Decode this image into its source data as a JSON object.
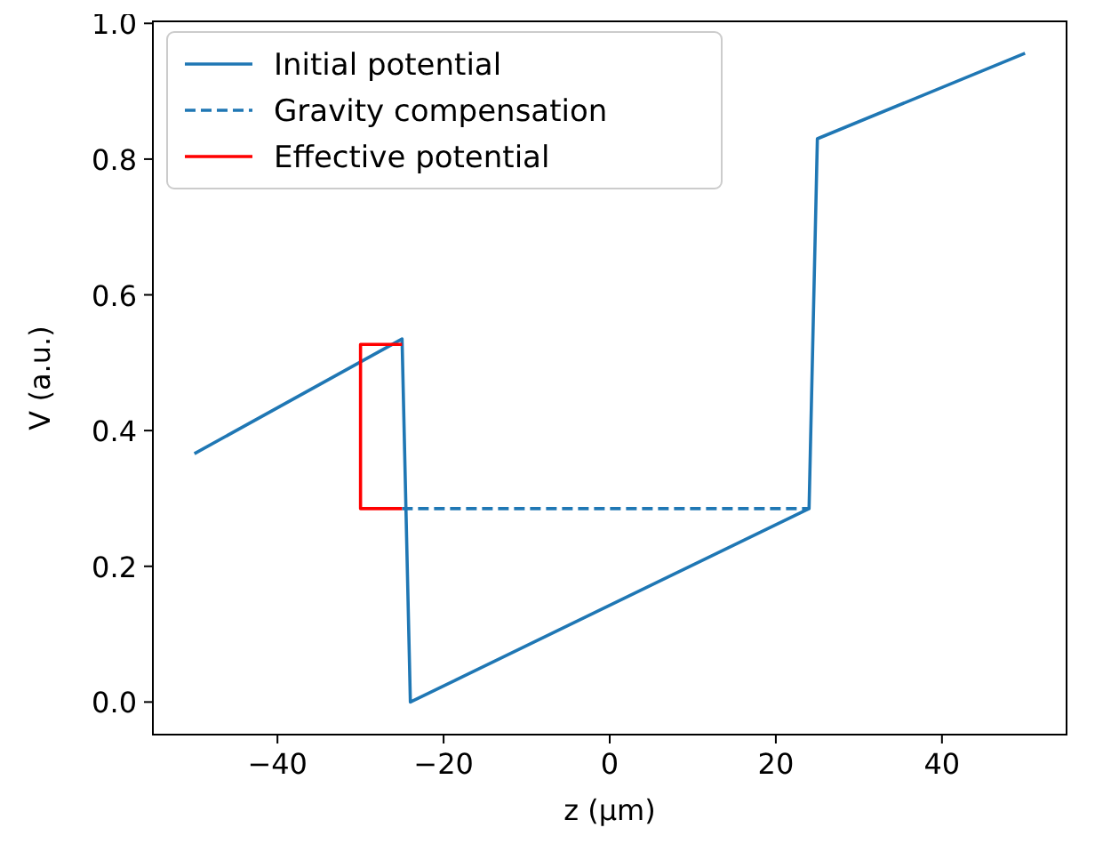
{
  "chart_data": {
    "type": "line",
    "xlabel": "z (μm)",
    "ylabel": "V (a.u.)",
    "xlim": [
      -55,
      55
    ],
    "ylim": [
      -0.048,
      1.003
    ],
    "xticks": [
      -40,
      -20,
      0,
      20,
      40
    ],
    "yticks": [
      {
        "value": 0,
        "label": "0.0"
      },
      {
        "value": 0.2,
        "label": "0.2"
      },
      {
        "value": 0.4,
        "label": "0.4"
      },
      {
        "value": 0.6,
        "label": "0.6"
      },
      {
        "value": 0.8,
        "label": "0.8"
      },
      {
        "value": 1,
        "label": "1.0"
      }
    ],
    "legend": "top left",
    "grid": false,
    "series": [
      {
        "name": "Initial potential",
        "color": "#1f77b4",
        "line_style": "solid",
        "x": [
          -50,
          -25,
          -24,
          24,
          25,
          50
        ],
        "values": [
          0.366,
          0.535,
          0,
          0.285,
          0.83,
          0.956
        ]
      },
      {
        "name": "Gravity compensation",
        "color": "#1f77b4",
        "line_style": "dashed",
        "x": [
          -25,
          24
        ],
        "values": [
          0.285,
          0.285
        ]
      },
      {
        "name": "Effective potential",
        "color": "#ff0000",
        "line_style": "solid",
        "x": [
          -25,
          -30,
          -30,
          -25
        ],
        "values": [
          0.285,
          0.285,
          0.527,
          0.527
        ]
      }
    ]
  }
}
